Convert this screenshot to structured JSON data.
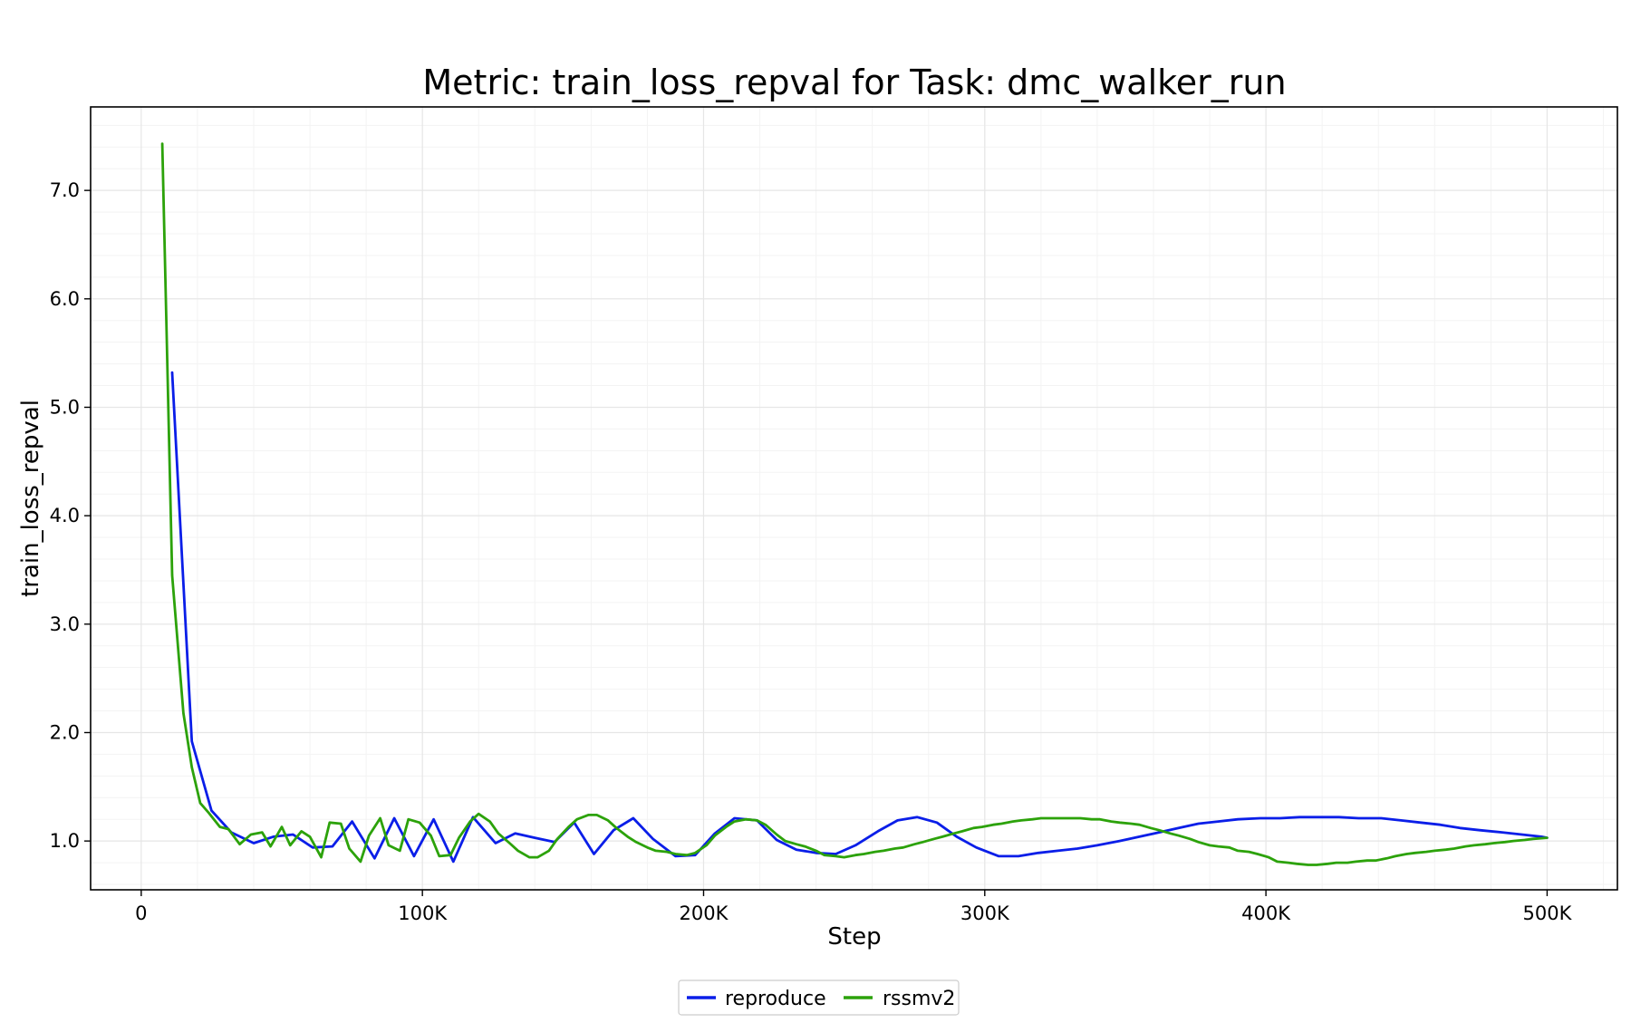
{
  "chart_data": {
    "type": "line",
    "title": "Metric: train_loss_repval for Task: dmc_walker_run",
    "xlabel": "Step",
    "ylabel": "train_loss_repval",
    "xlim": [
      -18000,
      525000
    ],
    "ylim": [
      0.55,
      7.77
    ],
    "grid": true,
    "legend_position": "bottom-center",
    "x_ticks": [
      {
        "value": 0,
        "label": "0"
      },
      {
        "value": 100000,
        "label": "100K"
      },
      {
        "value": 200000,
        "label": "200K"
      },
      {
        "value": 300000,
        "label": "300K"
      },
      {
        "value": 400000,
        "label": "400K"
      },
      {
        "value": 500000,
        "label": "500K"
      }
    ],
    "y_ticks": [
      {
        "value": 1.0,
        "label": "1.0"
      },
      {
        "value": 2.0,
        "label": "2.0"
      },
      {
        "value": 3.0,
        "label": "3.0"
      },
      {
        "value": 4.0,
        "label": "4.0"
      },
      {
        "value": 5.0,
        "label": "5.0"
      },
      {
        "value": 6.0,
        "label": "6.0"
      },
      {
        "value": 7.0,
        "label": "7.0"
      }
    ],
    "series": [
      {
        "name": "reproduce",
        "color": "#0a1ee8",
        "x": [
          11000,
          18000,
          25000,
          32000,
          40000,
          47000,
          54000,
          61000,
          68000,
          75000,
          83000,
          90000,
          97000,
          104000,
          111000,
          118000,
          126000,
          133000,
          140000,
          147000,
          154000,
          161000,
          168000,
          175000,
          182000,
          190000,
          197000,
          204000,
          211000,
          219000,
          226000,
          233000,
          240000,
          247000,
          254000,
          262000,
          269000,
          276000,
          283000,
          290000,
          297000,
          305000,
          312000,
          319000,
          326000,
          333000,
          340000,
          348000,
          355000,
          362000,
          369000,
          376000,
          383000,
          390000,
          398000,
          405000,
          412000,
          419000,
          426000,
          433000,
          441000,
          448000,
          455000,
          462000,
          469000,
          476000,
          484000,
          491000,
          498000,
          500000
        ],
        "y": [
          5.32,
          1.92,
          1.28,
          1.08,
          0.98,
          1.04,
          1.06,
          0.94,
          0.95,
          1.18,
          0.84,
          1.21,
          0.86,
          1.2,
          0.81,
          1.22,
          0.98,
          1.07,
          1.03,
          0.99,
          1.17,
          0.88,
          1.1,
          1.21,
          1.02,
          0.86,
          0.87,
          1.07,
          1.21,
          1.19,
          1.01,
          0.92,
          0.89,
          0.88,
          0.96,
          1.09,
          1.19,
          1.22,
          1.17,
          1.04,
          0.94,
          0.86,
          0.86,
          0.89,
          0.91,
          0.93,
          0.96,
          1.0,
          1.04,
          1.08,
          1.12,
          1.16,
          1.18,
          1.2,
          1.21,
          1.21,
          1.22,
          1.22,
          1.22,
          1.21,
          1.21,
          1.19,
          1.17,
          1.15,
          1.12,
          1.1,
          1.08,
          1.06,
          1.04,
          1.03
        ]
      },
      {
        "name": "rssmv2",
        "color": "#2ca20a",
        "x": [
          7500,
          11000,
          15000,
          18000,
          21000,
          24000,
          28000,
          31000,
          35000,
          39000,
          43000,
          46000,
          50000,
          53000,
          57000,
          60000,
          64000,
          67000,
          71000,
          74000,
          78000,
          81000,
          85000,
          88000,
          92000,
          95000,
          99000,
          103000,
          106000,
          110000,
          113000,
          117000,
          120000,
          124000,
          127000,
          131000,
          134000,
          138000,
          141000,
          145000,
          148000,
          152000,
          155000,
          159000,
          162000,
          166000,
          169000,
          173000,
          176000,
          180000,
          183000,
          187000,
          190000,
          194000,
          197000,
          201000,
          204000,
          208000,
          211000,
          215000,
          219000,
          222000,
          226000,
          229000,
          233000,
          236000,
          240000,
          243000,
          247000,
          250000,
          254000,
          257000,
          261000,
          264000,
          268000,
          271000,
          275000,
          278000,
          282000,
          285000,
          289000,
          292000,
          296000,
          299000,
          303000,
          306000,
          310000,
          313000,
          317000,
          320000,
          324000,
          327000,
          331000,
          334000,
          338000,
          341000,
          345000,
          348000,
          352000,
          355000,
          359000,
          362000,
          366000,
          369000,
          373000,
          376000,
          380000,
          383000,
          387000,
          390000,
          394000,
          397000,
          401000,
          404000,
          408000,
          411000,
          415000,
          418000,
          422000,
          425000,
          429000,
          432000,
          436000,
          439000,
          443000,
          446000,
          450000,
          453000,
          457000,
          460000,
          464000,
          467000,
          471000,
          474000,
          478000,
          481000,
          485000,
          488000,
          492000,
          495000,
          500000
        ],
        "y": [
          7.43,
          3.45,
          2.18,
          1.68,
          1.35,
          1.26,
          1.13,
          1.11,
          0.97,
          1.06,
          1.08,
          0.95,
          1.13,
          0.96,
          1.09,
          1.04,
          0.85,
          1.17,
          1.16,
          0.93,
          0.81,
          1.05,
          1.21,
          0.96,
          0.91,
          1.2,
          1.17,
          1.05,
          0.86,
          0.87,
          1.03,
          1.18,
          1.25,
          1.18,
          1.07,
          0.98,
          0.91,
          0.85,
          0.85,
          0.91,
          1.02,
          1.13,
          1.2,
          1.24,
          1.24,
          1.19,
          1.12,
          1.04,
          0.99,
          0.94,
          0.91,
          0.9,
          0.88,
          0.87,
          0.89,
          0.96,
          1.05,
          1.13,
          1.18,
          1.2,
          1.19,
          1.15,
          1.06,
          1.0,
          0.97,
          0.95,
          0.91,
          0.87,
          0.86,
          0.85,
          0.87,
          0.88,
          0.9,
          0.91,
          0.93,
          0.94,
          0.97,
          0.99,
          1.02,
          1.04,
          1.07,
          1.09,
          1.12,
          1.13,
          1.15,
          1.16,
          1.18,
          1.19,
          1.2,
          1.21,
          1.21,
          1.21,
          1.21,
          1.21,
          1.2,
          1.2,
          1.18,
          1.17,
          1.16,
          1.15,
          1.12,
          1.1,
          1.07,
          1.05,
          1.02,
          0.99,
          0.96,
          0.95,
          0.94,
          0.91,
          0.9,
          0.88,
          0.85,
          0.81,
          0.8,
          0.79,
          0.78,
          0.78,
          0.79,
          0.8,
          0.8,
          0.81,
          0.82,
          0.82,
          0.84,
          0.86,
          0.88,
          0.89,
          0.9,
          0.91,
          0.92,
          0.93,
          0.95,
          0.96,
          0.97,
          0.98,
          0.99,
          1.0,
          1.01,
          1.02,
          1.03
        ]
      }
    ]
  }
}
